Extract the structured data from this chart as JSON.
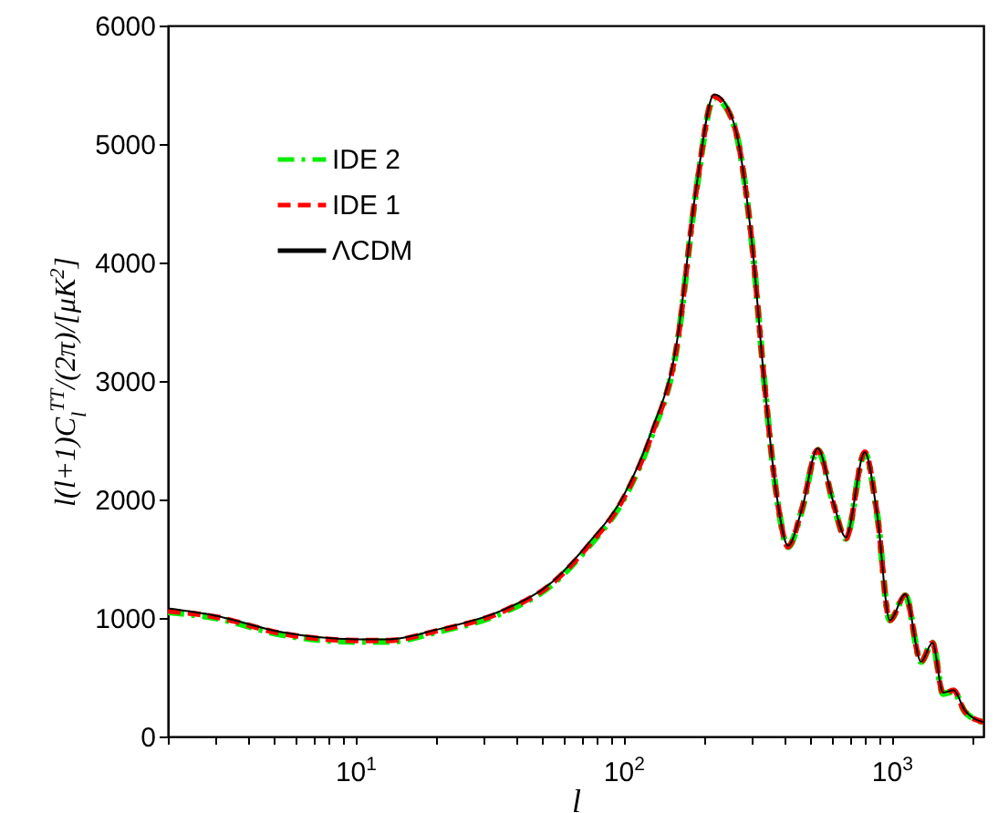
{
  "chart_data": {
    "type": "line",
    "xlabel": "l",
    "ylabel": "l(l+1)C$_{l}$$^{TT}$/(2π)/[μK$^{2}$]",
    "x": [
      2,
      3,
      5.3,
      10,
      13.3,
      20,
      35,
      54,
      74,
      100,
      127,
      158,
      186,
      218,
      256,
      301,
      335,
      373,
      411,
      463,
      530,
      606,
      675,
      794,
      884,
      985,
      1125,
      1288,
      1420,
      1556,
      1704,
      1875,
      2200
    ],
    "series": [
      {
        "name": "IDE 2",
        "color": "#00ee00",
        "line_style": "dashdot",
        "values": [
          1050,
          1000,
          860,
          800,
          800,
          880,
          1040,
          1280,
          1600,
          2000,
          2530,
          3280,
          4570,
          5390,
          5190,
          4180,
          3000,
          2030,
          1600,
          1910,
          2420,
          1970,
          1670,
          2390,
          1870,
          980,
          1190,
          630,
          790,
          360,
          380,
          210,
          120
        ]
      },
      {
        "name": "IDE 1",
        "color": "#ff0000",
        "line_style": "dashed",
        "values": [
          1060,
          1010,
          870,
          810,
          810,
          890,
          1050,
          1290,
          1610,
          2010,
          2540,
          3290,
          4580,
          5400,
          5190,
          4180,
          3000,
          2030,
          1600,
          1920,
          2420,
          1970,
          1670,
          2400,
          1870,
          980,
          1190,
          630,
          790,
          360,
          390,
          210,
          120
        ]
      },
      {
        "name": "ΛCDM",
        "color": "#000000",
        "line_style": "solid",
        "values": [
          1080,
          1020,
          880,
          820,
          820,
          900,
          1060,
          1300,
          1630,
          2030,
          2570,
          3320,
          4600,
          5420,
          5200,
          4180,
          3000,
          2030,
          1610,
          1920,
          2430,
          1980,
          1680,
          2400,
          1870,
          980,
          1200,
          630,
          790,
          370,
          390,
          220,
          120
        ]
      }
    ],
    "xlim": [
      2,
      2200
    ],
    "log": "x",
    "xticks": [
      {
        "value": 2,
        "label": null
      },
      {
        "value": 3,
        "label": null
      },
      {
        "value": 4,
        "label": null
      },
      {
        "value": 5,
        "label": null
      },
      {
        "value": 6,
        "label": null
      },
      {
        "value": 7,
        "label": null
      },
      {
        "value": 8,
        "label": null
      },
      {
        "value": 9,
        "label": null
      },
      {
        "value": 10,
        "label": "10$^{1}$"
      },
      {
        "value": 20,
        "label": null
      },
      {
        "value": 30,
        "label": null
      },
      {
        "value": 40,
        "label": null
      },
      {
        "value": 50,
        "label": null
      },
      {
        "value": 60,
        "label": null
      },
      {
        "value": 70,
        "label": null
      },
      {
        "value": 80,
        "label": null
      },
      {
        "value": 90,
        "label": null
      },
      {
        "value": 100,
        "label": "10$^{2}$"
      },
      {
        "value": 200,
        "label": null
      },
      {
        "value": 300,
        "label": null
      },
      {
        "value": 400,
        "label": null
      },
      {
        "value": 500,
        "label": null
      },
      {
        "value": 600,
        "label": null
      },
      {
        "value": 700,
        "label": null
      },
      {
        "value": 800,
        "label": null
      },
      {
        "value": 900,
        "label": null
      },
      {
        "value": 1000,
        "label": "10$^{3}$"
      },
      {
        "value": 2000,
        "label": null
      }
    ],
    "ylim": [
      0,
      6000
    ],
    "yticks": [
      0,
      1000,
      2000,
      3000,
      4000,
      5000,
      6000
    ],
    "grid": false,
    "legend": "top left",
    "marker": "none"
  }
}
